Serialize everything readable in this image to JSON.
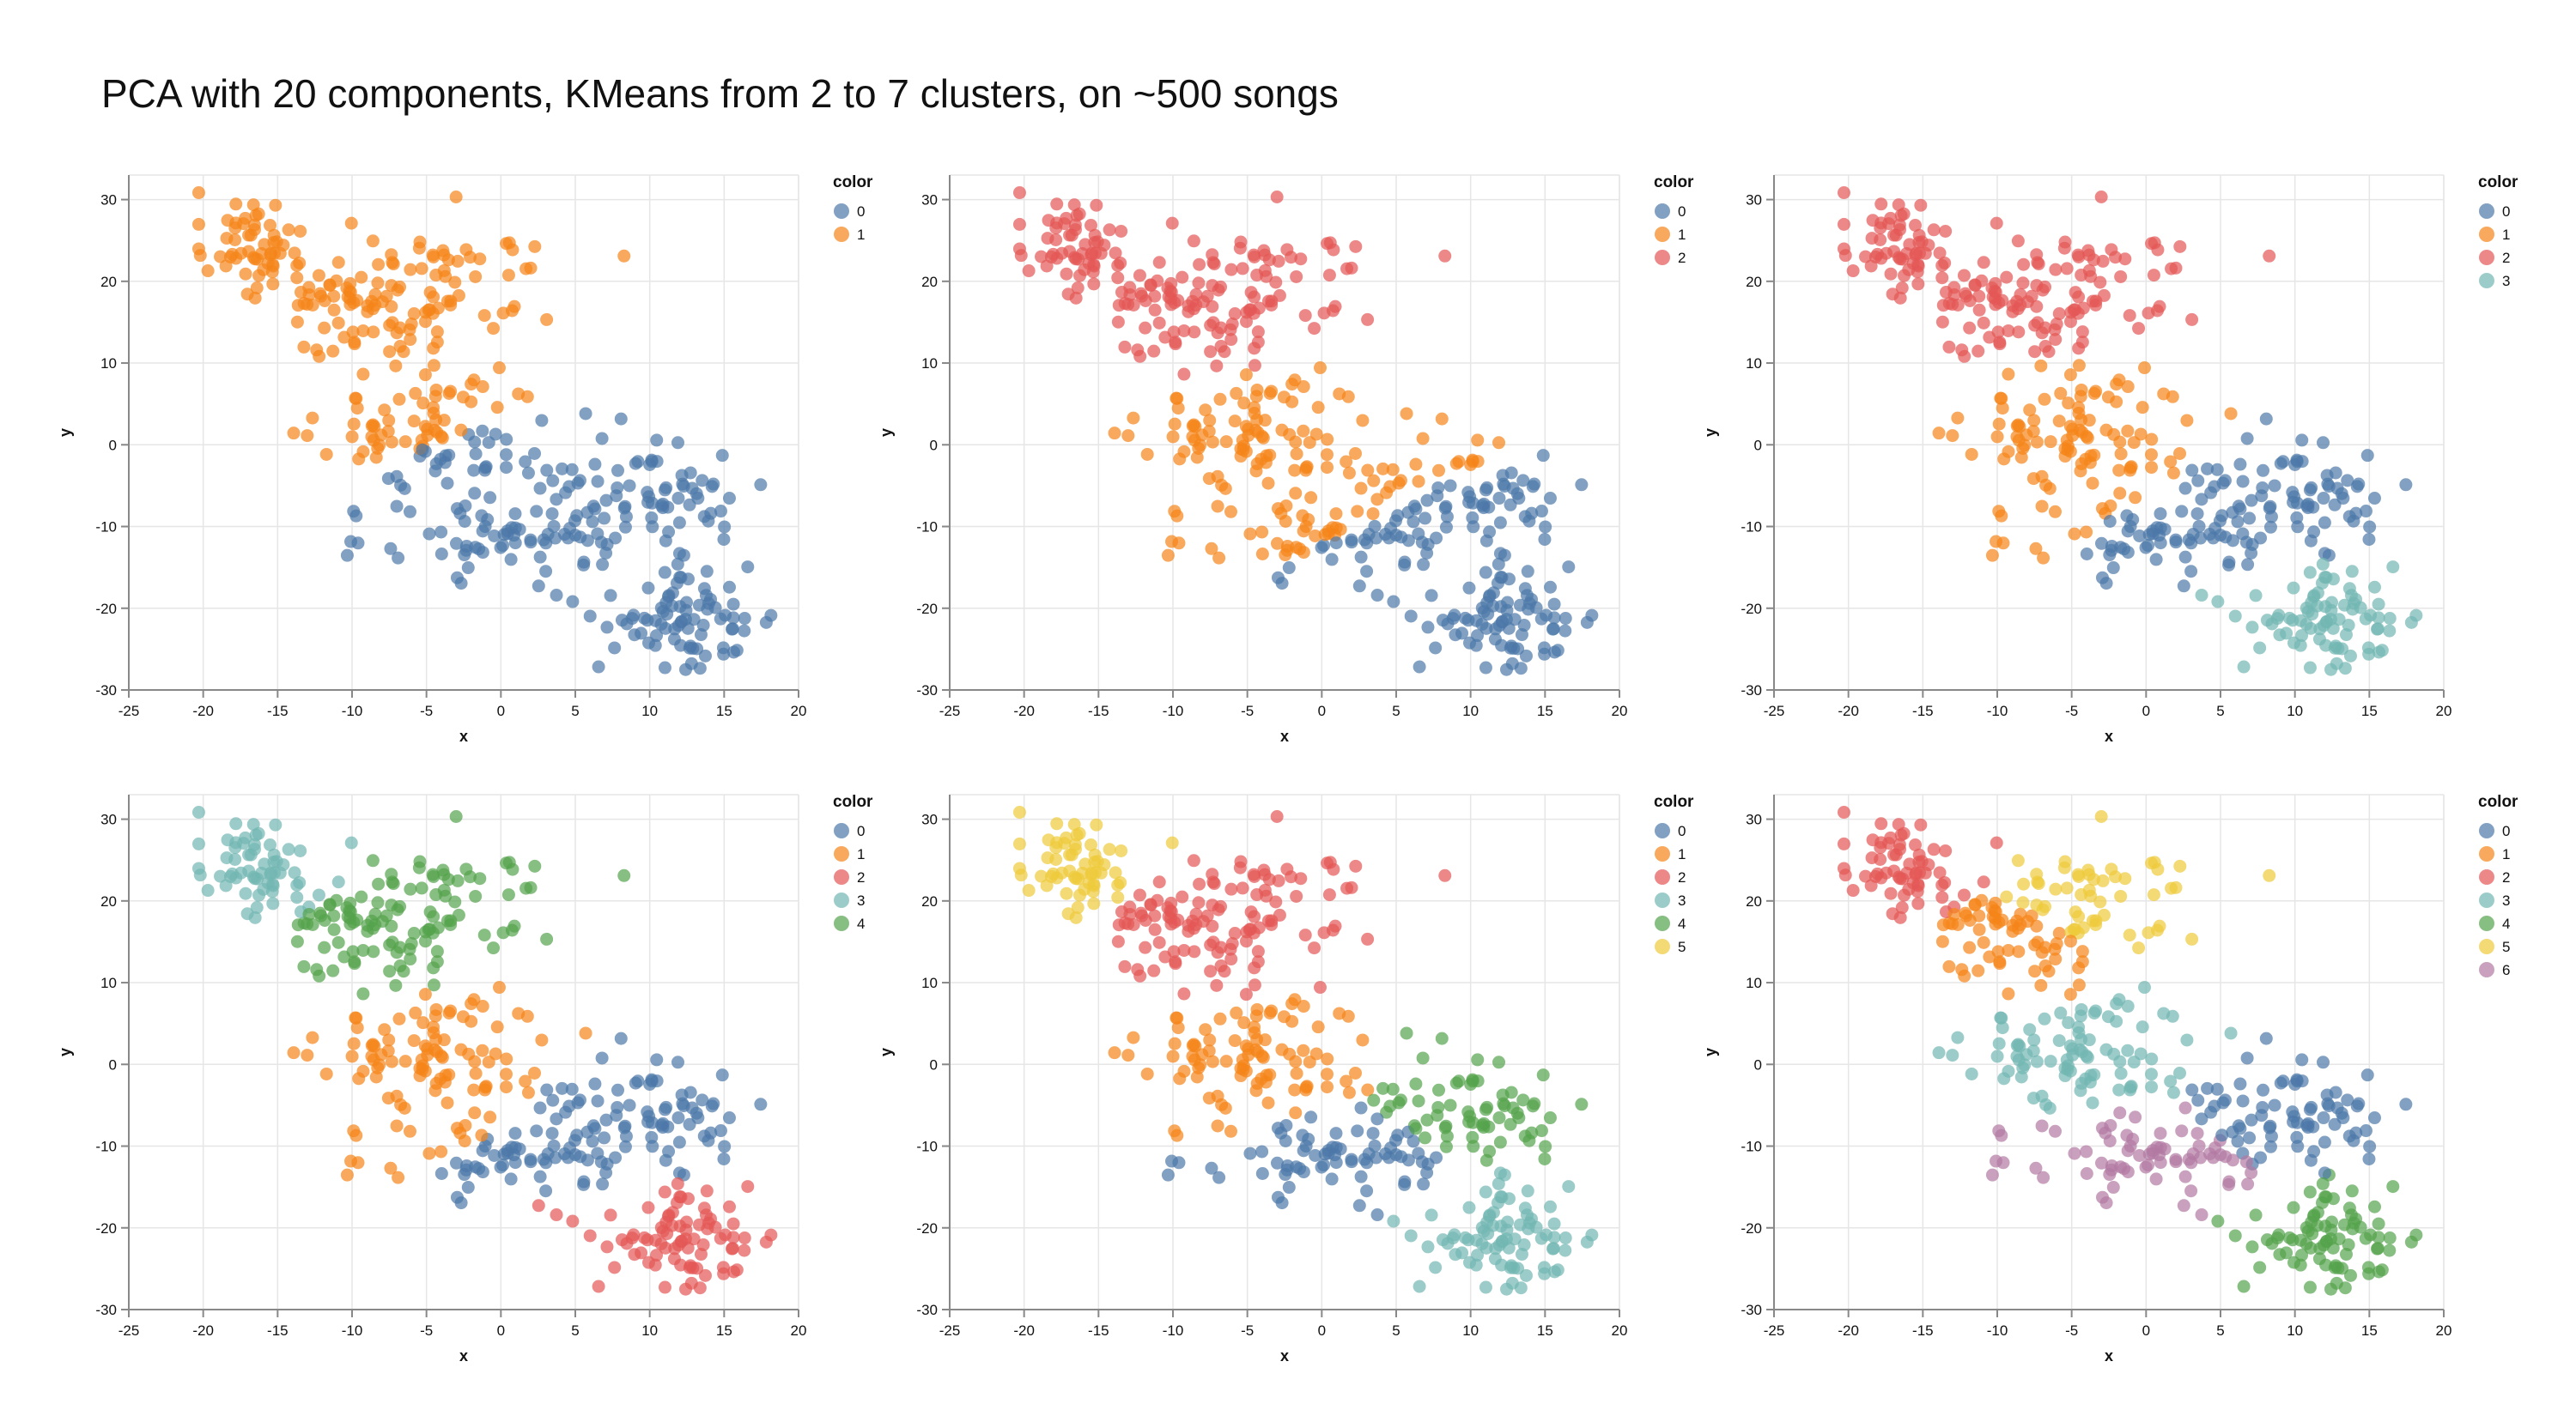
{
  "page": {
    "title": "PCA with 20 components, KMeans from 2 to 7 clusters, on ~500 songs"
  },
  "palette": {
    "0": "#4c78a8",
    "1": "#f58518",
    "2": "#e45756",
    "3": "#72b7b2",
    "4": "#54a24b",
    "5": "#eeca3b",
    "6": "#b279a2"
  },
  "chart_data": [
    {
      "type": "scatter",
      "xlabel": "x",
      "ylabel": "y",
      "xlim": [
        -25,
        20
      ],
      "ylim": [
        -30,
        33
      ],
      "xticks": [
        -25,
        -20,
        -15,
        -10,
        -5,
        0,
        5,
        10,
        15,
        20
      ],
      "yticks": [
        -30,
        -20,
        -10,
        0,
        10,
        20,
        30
      ],
      "grid": true,
      "legend_title": "color",
      "legend_position": "right",
      "legend": [
        "0",
        "1"
      ],
      "clusters": [
        {
          "id": "0",
          "centroid": [
            8,
            -14
          ]
        },
        {
          "id": "1",
          "centroid": [
            -10,
            18
          ]
        }
      ]
    },
    {
      "type": "scatter",
      "xlabel": "x",
      "ylabel": "y",
      "xlim": [
        -25,
        20
      ],
      "ylim": [
        -30,
        33
      ],
      "xticks": [
        -25,
        -20,
        -15,
        -10,
        -5,
        0,
        5,
        10,
        15,
        20
      ],
      "yticks": [
        -30,
        -20,
        -10,
        0,
        10,
        20,
        30
      ],
      "grid": true,
      "legend_title": "color",
      "legend_position": "right",
      "legend": [
        "0",
        "1",
        "2"
      ],
      "clusters": [
        {
          "id": "0",
          "centroid": [
            10,
            -16
          ]
        },
        {
          "id": "1",
          "centroid": [
            -3,
            -2
          ]
        },
        {
          "id": "2",
          "centroid": [
            -10,
            20
          ]
        }
      ]
    },
    {
      "type": "scatter",
      "xlabel": "x",
      "ylabel": "y",
      "xlim": [
        -25,
        20
      ],
      "ylim": [
        -30,
        33
      ],
      "xticks": [
        -25,
        -20,
        -15,
        -10,
        -5,
        0,
        5,
        10,
        15,
        20
      ],
      "yticks": [
        -30,
        -20,
        -10,
        0,
        10,
        20,
        30
      ],
      "grid": true,
      "legend_title": "color",
      "legend_position": "right",
      "legend": [
        "0",
        "1",
        "2",
        "3"
      ],
      "clusters": [
        {
          "id": "0",
          "centroid": [
            7,
            -9
          ]
        },
        {
          "id": "1",
          "centroid": [
            -4,
            0
          ]
        },
        {
          "id": "2",
          "centroid": [
            -10,
            20
          ]
        },
        {
          "id": "3",
          "centroid": [
            12,
            -21
          ]
        }
      ]
    },
    {
      "type": "scatter",
      "xlabel": "x",
      "ylabel": "y",
      "xlim": [
        -25,
        20
      ],
      "ylim": [
        -30,
        33
      ],
      "xticks": [
        -25,
        -20,
        -15,
        -10,
        -5,
        0,
        5,
        10,
        15,
        20
      ],
      "yticks": [
        -30,
        -20,
        -10,
        0,
        10,
        20,
        30
      ],
      "grid": true,
      "legend_title": "color",
      "legend_position": "right",
      "legend": [
        "0",
        "1",
        "2",
        "3",
        "4"
      ],
      "clusters": [
        {
          "id": "0",
          "centroid": [
            8,
            -8
          ]
        },
        {
          "id": "1",
          "centroid": [
            -4,
            0
          ]
        },
        {
          "id": "2",
          "centroid": [
            12,
            -21
          ]
        },
        {
          "id": "3",
          "centroid": [
            -17,
            24
          ]
        },
        {
          "id": "4",
          "centroid": [
            -6,
            18
          ]
        }
      ]
    },
    {
      "type": "scatter",
      "xlabel": "x",
      "ylabel": "y",
      "xlim": [
        -25,
        20
      ],
      "ylim": [
        -30,
        33
      ],
      "xticks": [
        -25,
        -20,
        -15,
        -10,
        -5,
        0,
        5,
        10,
        15,
        20
      ],
      "yticks": [
        -30,
        -20,
        -10,
        0,
        10,
        20,
        30
      ],
      "grid": true,
      "legend_title": "color",
      "legend_position": "right",
      "legend": [
        "0",
        "1",
        "2",
        "3",
        "4",
        "5"
      ],
      "clusters": [
        {
          "id": "0",
          "centroid": [
            1,
            -12
          ]
        },
        {
          "id": "1",
          "centroid": [
            -4,
            -1
          ]
        },
        {
          "id": "2",
          "centroid": [
            -7,
            17
          ]
        },
        {
          "id": "3",
          "centroid": [
            12,
            -19
          ]
        },
        {
          "id": "4",
          "centroid": [
            11,
            -5
          ]
        },
        {
          "id": "5",
          "centroid": [
            -17,
            25
          ]
        }
      ]
    },
    {
      "type": "scatter",
      "xlabel": "x",
      "ylabel": "y",
      "xlim": [
        -25,
        20
      ],
      "ylim": [
        -30,
        33
      ],
      "xticks": [
        -25,
        -20,
        -15,
        -10,
        -5,
        0,
        5,
        10,
        15,
        20
      ],
      "yticks": [
        -30,
        -20,
        -10,
        0,
        10,
        20,
        30
      ],
      "grid": true,
      "legend_title": "color",
      "legend_position": "right",
      "legend": [
        "0",
        "1",
        "2",
        "3",
        "4",
        "5",
        "6"
      ],
      "clusters": [
        {
          "id": "0",
          "centroid": [
            10,
            -6
          ]
        },
        {
          "id": "1",
          "centroid": [
            -9,
            14
          ]
        },
        {
          "id": "2",
          "centroid": [
            -17,
            24
          ]
        },
        {
          "id": "3",
          "centroid": [
            -4,
            1
          ]
        },
        {
          "id": "4",
          "centroid": [
            12,
            -21
          ]
        },
        {
          "id": "5",
          "centroid": [
            -3,
            20
          ]
        },
        {
          "id": "6",
          "centroid": [
            0,
            -12
          ]
        }
      ]
    }
  ]
}
